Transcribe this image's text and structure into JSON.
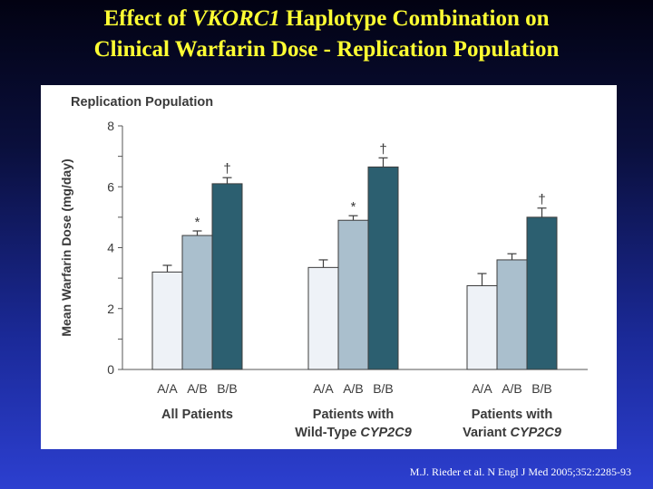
{
  "slide": {
    "title_line1_prefix": "Effect of ",
    "title_line1_italic": "VKORC1",
    "title_line1_suffix": " Haplotype Combination on",
    "title_line2": "Clinical Warfarin Dose - Replication Population",
    "citation": "M.J. Rieder et al. N Engl J Med 2005;352:2285-93"
  },
  "colors": {
    "title": "#ffff33",
    "bar_AA": "#eef2f7",
    "bar_AB": "#aabfcd",
    "bar_BB": "#2c5f70"
  },
  "chart_data": {
    "type": "bar",
    "panel_title": "Replication Population",
    "ylabel": "Mean Warfarin Dose (mg/day)",
    "ylim": [
      0,
      8
    ],
    "yticks": [
      "0",
      "2",
      "4",
      "6",
      "8"
    ],
    "groups": [
      {
        "label_lines": [
          {
            "text": "All Patients",
            "italic": ""
          }
        ],
        "bars": [
          {
            "category": "A/A",
            "value": 3.2,
            "error": 0.22,
            "marker": ""
          },
          {
            "category": "A/B",
            "value": 4.4,
            "error": 0.15,
            "marker": "*"
          },
          {
            "category": "B/B",
            "value": 6.1,
            "error": 0.2,
            "marker": "†"
          }
        ]
      },
      {
        "label_lines": [
          {
            "text": "Patients with",
            "italic": ""
          },
          {
            "text": "Wild-Type ",
            "italic": "CYP2C9"
          }
        ],
        "bars": [
          {
            "category": "A/A",
            "value": 3.35,
            "error": 0.25,
            "marker": ""
          },
          {
            "category": "A/B",
            "value": 4.9,
            "error": 0.15,
            "marker": "*"
          },
          {
            "category": "B/B",
            "value": 6.65,
            "error": 0.3,
            "marker": "†"
          }
        ]
      },
      {
        "label_lines": [
          {
            "text": "Patients with",
            "italic": ""
          },
          {
            "text": "Variant ",
            "italic": "CYP2C9"
          }
        ],
        "bars": [
          {
            "category": "A/A",
            "value": 2.75,
            "error": 0.4,
            "marker": ""
          },
          {
            "category": "A/B",
            "value": 3.6,
            "error": 0.2,
            "marker": ""
          },
          {
            "category": "B/B",
            "value": 5.0,
            "error": 0.3,
            "marker": "†"
          }
        ]
      }
    ]
  }
}
